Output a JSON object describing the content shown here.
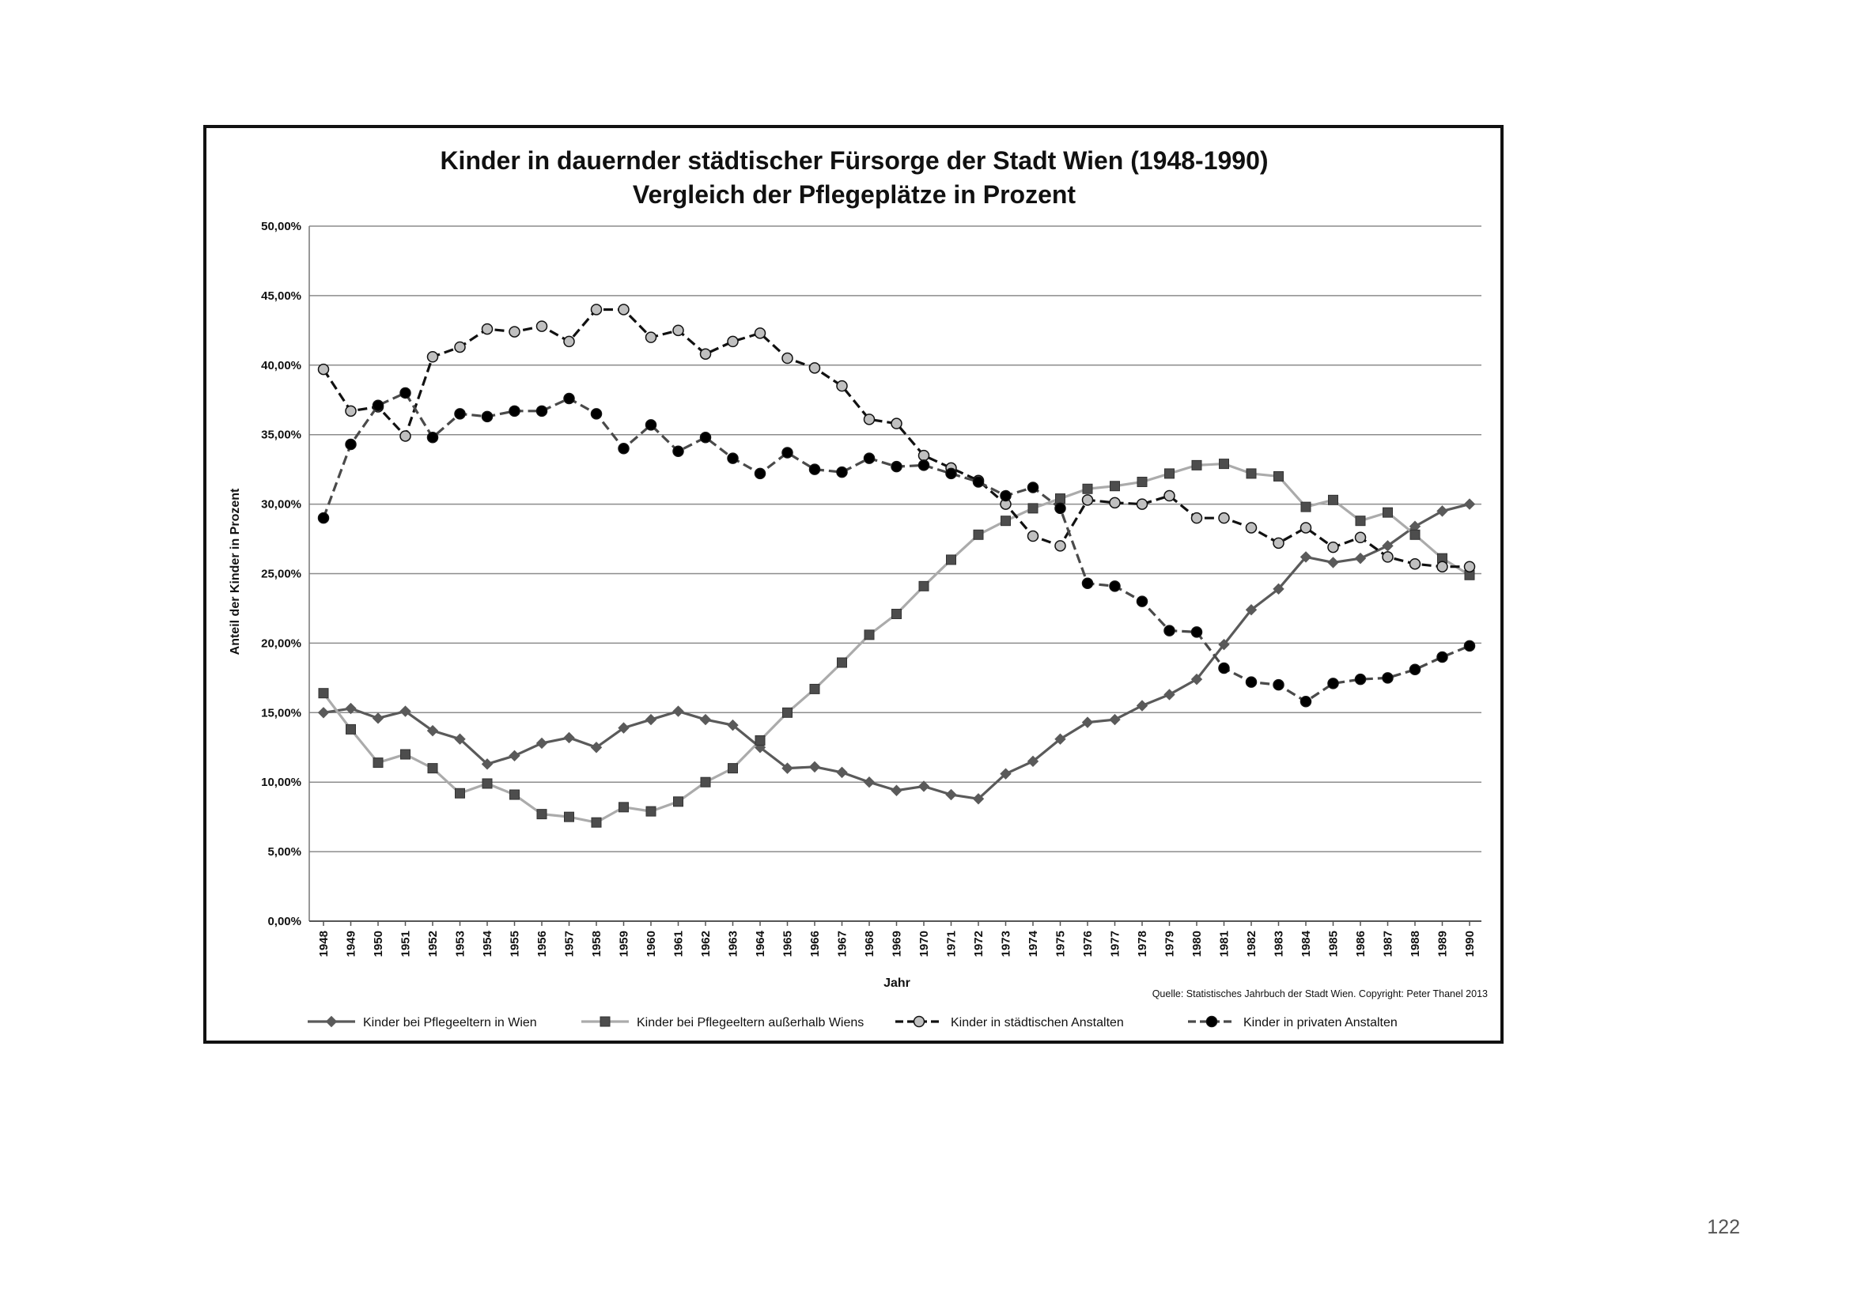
{
  "page_number": "122",
  "chart_data": {
    "type": "line",
    "title": "Kinder in dauernder städtischer Fürsorge der Stadt Wien (1948-1990)",
    "subtitle": "Vergleich der Pflegeplätze in Prozent",
    "xlabel": "Jahr",
    "ylabel": "Anteil der Kinder in Prozent",
    "ylim": [
      0,
      50
    ],
    "y_ticks": [
      "0,00%",
      "5,00%",
      "10,00%",
      "15,00%",
      "20,00%",
      "25,00%",
      "30,00%",
      "35,00%",
      "40,00%",
      "45,00%",
      "50,00%"
    ],
    "grid": true,
    "legend_position": "bottom",
    "source": "Quelle: Statistisches Jahrbuch der Stadt Wien. Copyright: Peter Thanel 2013",
    "categories": [
      "1948",
      "1949",
      "1950",
      "1951",
      "1952",
      "1953",
      "1954",
      "1955",
      "1956",
      "1957",
      "1958",
      "1959",
      "1960",
      "1961",
      "1962",
      "1963",
      "1964",
      "1965",
      "1966",
      "1967",
      "1968",
      "1969",
      "1970",
      "1971",
      "1972",
      "1973",
      "1974",
      "1975",
      "1976",
      "1977",
      "1978",
      "1979",
      "1980",
      "1981",
      "1982",
      "1983",
      "1984",
      "1985",
      "1986",
      "1987",
      "1988",
      "1989",
      "1990"
    ],
    "series": [
      {
        "name": "Kinder bei Pflegeeltern in Wien",
        "color": "#5a5a5a",
        "line_style": "solid",
        "marker": "diamond",
        "marker_fill": "#5a5a5a",
        "values": [
          15.0,
          15.3,
          14.6,
          15.1,
          13.7,
          13.1,
          11.3,
          11.9,
          12.8,
          13.2,
          12.5,
          13.9,
          14.5,
          15.1,
          14.5,
          14.1,
          12.5,
          11.0,
          11.1,
          10.7,
          10.0,
          9.4,
          9.7,
          9.1,
          8.8,
          10.6,
          11.5,
          13.1,
          14.3,
          14.5,
          15.5,
          16.3,
          17.4,
          19.9,
          22.4,
          23.9,
          26.2,
          25.8,
          26.1,
          27.0,
          28.4,
          29.5,
          30.0
        ]
      },
      {
        "name": "Kinder bei Pflegeeltern außerhalb Wiens",
        "color": "#ababab",
        "line_style": "solid",
        "marker": "square",
        "marker_fill": "#4d4d4d",
        "values": [
          16.4,
          13.8,
          11.4,
          12.0,
          11.0,
          9.2,
          9.9,
          9.1,
          7.7,
          7.5,
          7.1,
          8.2,
          7.9,
          8.6,
          10.0,
          11.0,
          13.0,
          15.0,
          16.7,
          18.6,
          20.6,
          22.1,
          24.1,
          26.0,
          27.8,
          28.8,
          29.7,
          30.4,
          31.1,
          31.3,
          31.6,
          32.2,
          32.8,
          32.9,
          32.2,
          32.0,
          29.8,
          30.3,
          28.8,
          29.4,
          27.8,
          26.1,
          24.9
        ]
      },
      {
        "name": "Kinder in städtischen Anstalten",
        "color": "#111111",
        "line_style": "dashed",
        "marker": "circle",
        "marker_fill": "#c0c0c0",
        "values": [
          39.7,
          36.7,
          37.0,
          34.9,
          40.6,
          41.3,
          42.6,
          42.4,
          42.8,
          41.7,
          44.0,
          44.0,
          42.0,
          42.5,
          40.8,
          41.7,
          42.3,
          40.5,
          39.8,
          38.5,
          36.1,
          35.8,
          33.5,
          32.6,
          31.7,
          30.0,
          27.7,
          27.0,
          30.3,
          30.1,
          30.0,
          30.6,
          29.0,
          29.0,
          28.3,
          27.2,
          28.3,
          26.9,
          27.6,
          26.2,
          25.7,
          25.5,
          25.5
        ]
      },
      {
        "name": "Kinder in privaten Anstalten",
        "color": "#4a4a4a",
        "line_style": "dashed",
        "marker": "circle",
        "marker_fill": "#000000",
        "values": [
          29.0,
          34.3,
          37.1,
          38.0,
          34.8,
          36.5,
          36.3,
          36.7,
          36.7,
          37.6,
          36.5,
          34.0,
          35.7,
          33.8,
          34.8,
          33.3,
          32.2,
          33.7,
          32.5,
          32.3,
          33.3,
          32.7,
          32.8,
          32.2,
          31.6,
          30.6,
          31.2,
          29.7,
          24.3,
          24.1,
          23.0,
          20.9,
          20.8,
          18.2,
          17.2,
          17.0,
          15.8,
          17.1,
          17.4,
          17.5,
          18.1,
          19.0,
          19.8
        ]
      }
    ]
  }
}
